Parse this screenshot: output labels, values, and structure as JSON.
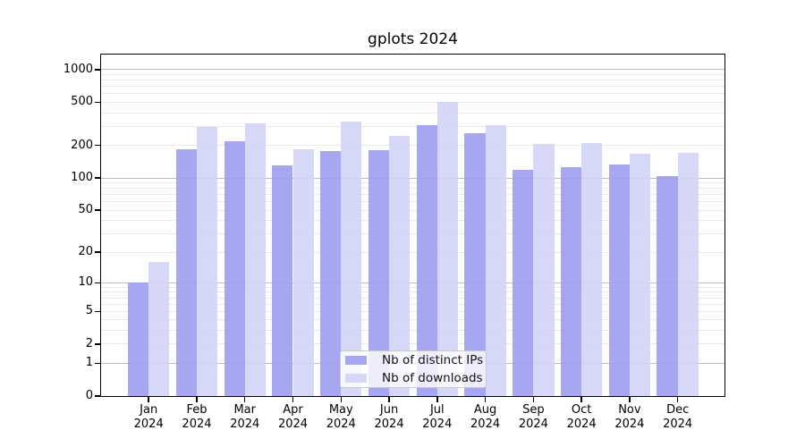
{
  "chart_data": {
    "type": "bar",
    "title": "gplots 2024",
    "scale": "pseudo-log y axis: y = log10(1 + value)",
    "categories": [
      "Jan 2024",
      "Feb 2024",
      "Mar 2024",
      "Apr 2024",
      "May 2024",
      "Jun 2024",
      "Jul 2024",
      "Aug 2024",
      "Sep 2024",
      "Oct 2024",
      "Nov 2024",
      "Dec 2024"
    ],
    "series": [
      {
        "name": "Nb of distinct IPs",
        "key": "ips",
        "color": "#9c9cef",
        "values": [
          10,
          185,
          220,
          130,
          178,
          180,
          305,
          260,
          120,
          125,
          134,
          105
        ]
      },
      {
        "name": "Nb of downloads",
        "key": "downloads",
        "color": "#d3d3f7",
        "values": [
          16,
          295,
          320,
          185,
          335,
          245,
          500,
          305,
          207,
          212,
          166,
          172
        ]
      }
    ],
    "yticks": [
      0,
      1,
      2,
      5,
      10,
      20,
      50,
      100,
      200,
      500,
      1000
    ],
    "ylim": [
      0,
      1380
    ],
    "xlabel": "",
    "ylabel": "",
    "grid": "horizontal gridlines: darker at decades 1/10/100/1000, faint minors at 2-9 multiples",
    "legend": {
      "position": "inside bottom-center"
    },
    "colors": {
      "axis": "#000000",
      "grid_major": "#bdbdbd",
      "grid_minor": "#e9e9e9",
      "background": "#ffffff"
    }
  }
}
